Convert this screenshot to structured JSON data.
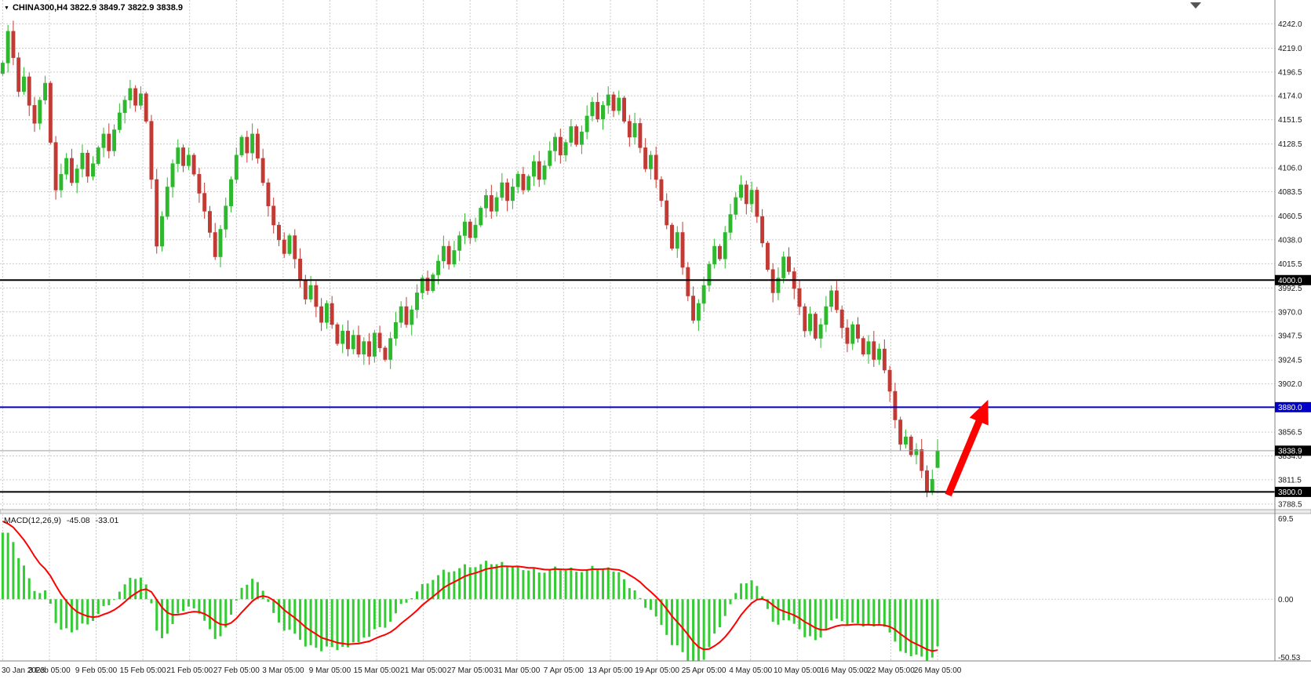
{
  "header": {
    "symbol_dropdown_icon": "▼",
    "title_text": "CHINA300,H4 3822.9 3849.7 3822.9 3838.9",
    "symbol": "CHINA300",
    "timeframe": "H4",
    "open": "3822.9",
    "high": "3849.7",
    "low": "3822.9",
    "close": "3838.9"
  },
  "macd_panel": {
    "name": "MACD(12,26,9)",
    "macd_value": "-45.08",
    "signal_value": "-33.01",
    "axis_labels": [
      "69.5",
      "0.00",
      "-50.53"
    ],
    "ylim": [
      -50.53,
      69.5
    ]
  },
  "price_axis": {
    "ticks": [
      "4242.0",
      "4219.0",
      "4196.5",
      "4174.0",
      "4151.5",
      "4128.5",
      "4106.0",
      "4083.5",
      "4060.5",
      "4038.0",
      "4015.5",
      "3992.5",
      "3970.0",
      "3947.5",
      "3924.5",
      "3902.0",
      "3880.0",
      "3856.5",
      "3834.0",
      "3811.5",
      "3788.5"
    ]
  },
  "time_axis": {
    "labels": [
      "30 Jan 2023",
      "3 Feb 05:00",
      "9 Feb 05:00",
      "15 Feb 05:00",
      "21 Feb 05:00",
      "27 Feb 05:00",
      "3 Mar 05:00",
      "9 Mar 05:00",
      "15 Mar 05:00",
      "21 Mar 05:00",
      "27 Mar 05:00",
      "31 Mar 05:00",
      "7 Apr 05:00",
      "13 Apr 05:00",
      "19 Apr 05:00",
      "25 Apr 05:00",
      "4 May 05:00",
      "10 May 05:00",
      "16 May 05:00",
      "22 May 05:00",
      "26 May 05:00"
    ]
  },
  "chart_data": {
    "type": "candlestick",
    "title": "CHINA300,H4",
    "ylim": [
      3784,
      4246
    ],
    "x_slots": 240,
    "closes": [
      4205,
      4235,
      4210,
      4178,
      4192,
      4165,
      4148,
      4170,
      4186,
      4130,
      4085,
      4100,
      4115,
      4092,
      4105,
      4120,
      4098,
      4110,
      4125,
      4138,
      4122,
      4142,
      4158,
      4170,
      4181,
      4165,
      4176,
      4150,
      4095,
      4032,
      4060,
      4088,
      4110,
      4125,
      4108,
      4118,
      4100,
      4082,
      4065,
      4045,
      4022,
      4048,
      4070,
      4095,
      4118,
      4135,
      4120,
      4138,
      4115,
      4092,
      4070,
      4052,
      4038,
      4025,
      4042,
      4020,
      4000,
      3982,
      3995,
      3975,
      3960,
      3978,
      3958,
      3940,
      3952,
      3935,
      3948,
      3930,
      3942,
      3928,
      3950,
      3936,
      3925,
      3945,
      3960,
      3975,
      3958,
      3972,
      3988,
      4002,
      3990,
      4005,
      4018,
      4032,
      4015,
      4028,
      4042,
      4055,
      4040,
      4052,
      4068,
      4080,
      4065,
      4078,
      4092,
      4075,
      4088,
      4100,
      4085,
      4098,
      4112,
      4095,
      4108,
      4122,
      4135,
      4118,
      4130,
      4145,
      4128,
      4140,
      4155,
      4168,
      4152,
      4165,
      4175,
      4160,
      4172,
      4150,
      4135,
      4148,
      4125,
      4105,
      4118,
      4095,
      4075,
      4052,
      4030,
      4045,
      4012,
      3985,
      3962,
      3978,
      3995,
      4015,
      4032,
      4020,
      4045,
      4062,
      4078,
      4090,
      4072,
      4085,
      4060,
      4035,
      4010,
      3988,
      4002,
      4022,
      4008,
      3992,
      3975,
      3952,
      3968,
      3945,
      3958,
      3975,
      3990,
      3972,
      3955,
      3940,
      3958,
      3945,
      3930,
      3942,
      3925,
      3935,
      3915,
      3895,
      3868,
      3845,
      3852,
      3835,
      3840,
      3820,
      3800,
      3812,
      3838.9
    ],
    "last_candle_ohlc": [
      3822.9,
      3849.7,
      3822.9,
      3838.9
    ],
    "horizontal_lines": [
      {
        "price": 4000.0,
        "label": "4000.0",
        "color": "#000000"
      },
      {
        "price": 3880.0,
        "label": "3880.0",
        "color": "#0000C8"
      },
      {
        "price": 3800.0,
        "label": "3800.0",
        "color": "#000000"
      }
    ],
    "current_price": {
      "value": 3838.9,
      "label": "3838.9"
    },
    "arrow_annotation": {
      "from_slot": 178,
      "from_price": 3797,
      "to_slot": 185.5,
      "to_price": 3887,
      "color": "#FF0000"
    },
    "macd": {
      "type": "histogram+line",
      "fast": 12,
      "slow": 26,
      "signal": 9,
      "last_macd": -45.08,
      "last_signal": -33.01,
      "ylim": [
        -50.53,
        69.5
      ]
    }
  },
  "colors": {
    "background": "#FFFFFF",
    "grid": "#CBCBCB",
    "candle_up": "#2DB82D",
    "candle_down": "#C23A34",
    "macd_histogram": "#33CC33",
    "macd_signal": "#FF0000",
    "axis_text": "#1A1A1A",
    "badge_text": "#FFFFFF",
    "current_price_line": "#9C9C9C",
    "separator": "#808080",
    "shift_marker": "#555555"
  }
}
